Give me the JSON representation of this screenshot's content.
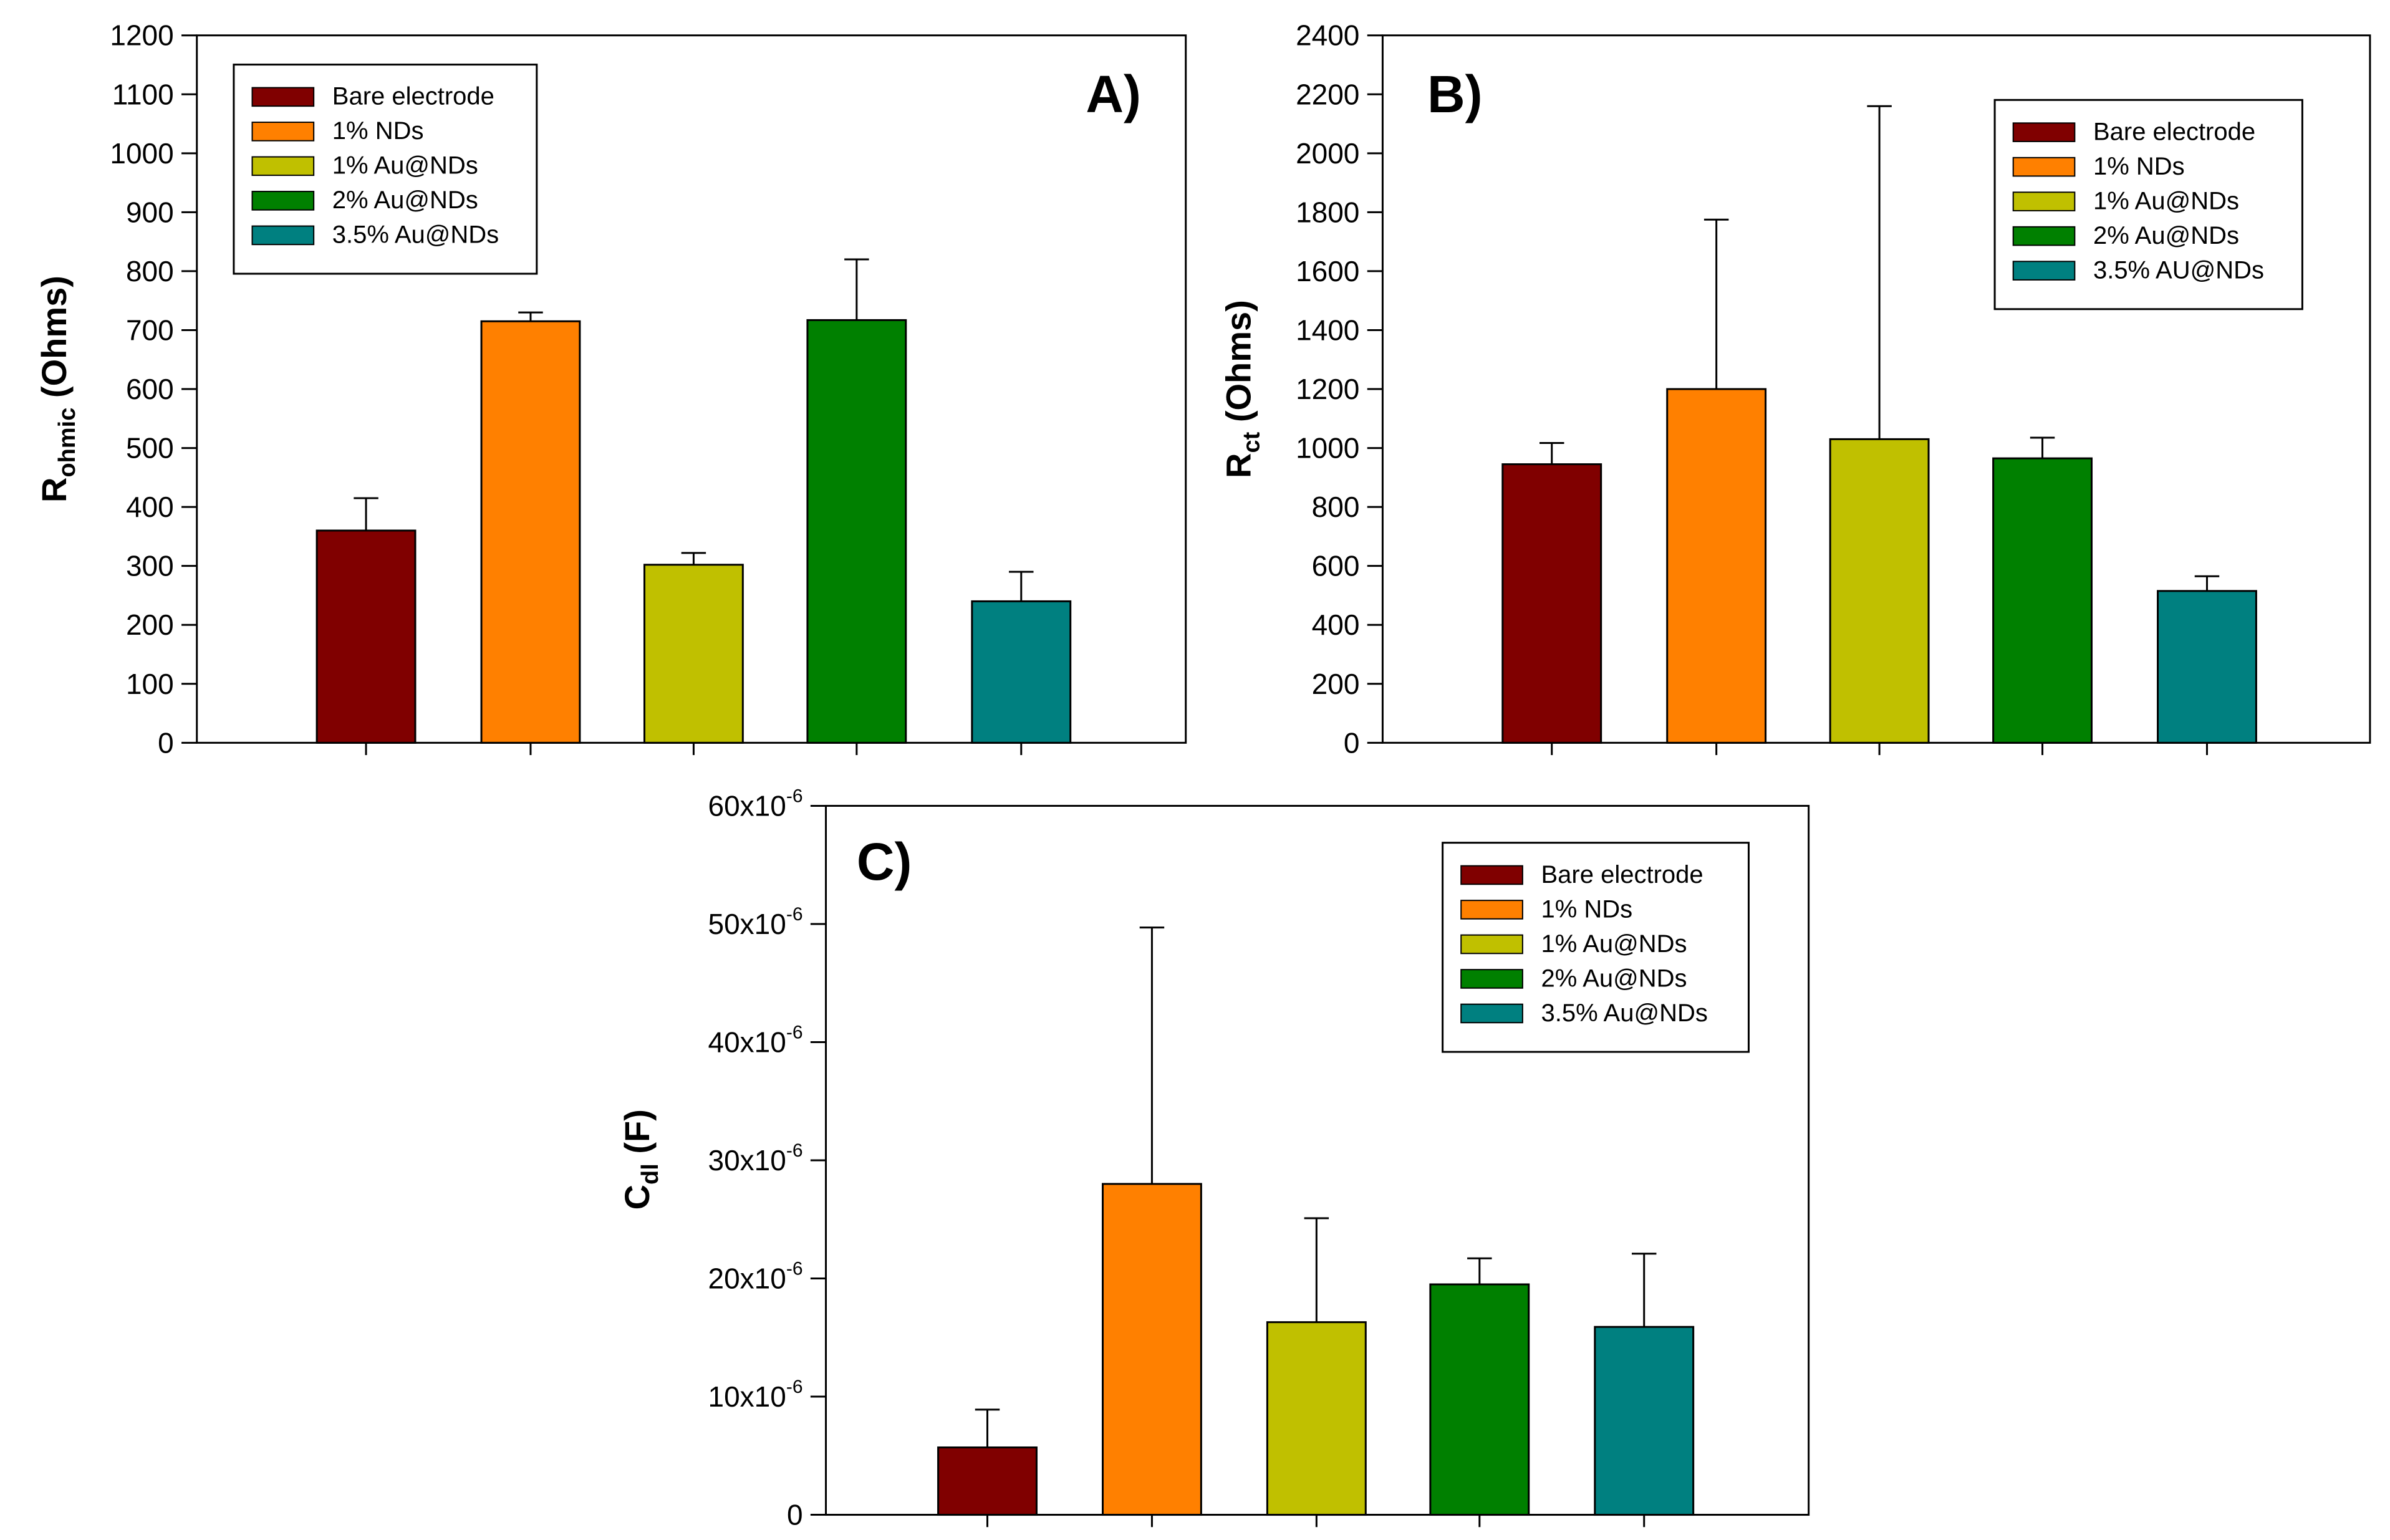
{
  "colors": {
    "bare": "#800000",
    "nds": "#FF8000",
    "au1": "#C0C000",
    "au2": "#008000",
    "au35": "#008080"
  },
  "chart_data": [
    {
      "type": "bar",
      "panel_label": "A)",
      "ylabel_main": "R",
      "ylabel_sub": "ohmic",
      "ylabel_unit": " (Ohms)",
      "ylim": [
        0,
        1200
      ],
      "yticks": [
        0,
        100,
        200,
        300,
        400,
        500,
        600,
        700,
        800,
        900,
        1000,
        1100,
        1200
      ],
      "legend_position": "top-left",
      "series": [
        {
          "name": "Bare electrode",
          "color_key": "bare",
          "value": 360,
          "error": 55
        },
        {
          "name": "1% NDs",
          "color_key": "nds",
          "value": 715,
          "error": 15
        },
        {
          "name": "1% Au@NDs",
          "color_key": "au1",
          "value": 302,
          "error": 20
        },
        {
          "name": "2% Au@NDs",
          "color_key": "au2",
          "value": 717,
          "error": 103
        },
        {
          "name": "3.5% Au@NDs",
          "color_key": "au35",
          "value": 240,
          "error": 50
        }
      ]
    },
    {
      "type": "bar",
      "panel_label": "B)",
      "ylabel_main": "R",
      "ylabel_sub": "ct",
      "ylabel_unit": " (Ohms)",
      "ylim": [
        0,
        2400
      ],
      "yticks": [
        0,
        200,
        400,
        600,
        800,
        1000,
        1200,
        1400,
        1600,
        1800,
        2000,
        2200,
        2400
      ],
      "legend_position": "top-right",
      "series": [
        {
          "name": "Bare electrode",
          "color_key": "bare",
          "value": 945,
          "error": 72
        },
        {
          "name": "1% NDs",
          "color_key": "nds",
          "value": 1200,
          "error": 575
        },
        {
          "name": "1% Au@NDs",
          "color_key": "au1",
          "value": 1030,
          "error": 1130
        },
        {
          "name": "2% Au@NDs",
          "color_key": "au2",
          "value": 965,
          "error": 70
        },
        {
          "name": "3.5% AU@NDs",
          "color_key": "au35",
          "value": 515,
          "error": 50
        }
      ]
    },
    {
      "type": "bar",
      "panel_label": "C)",
      "ylabel_main": "C",
      "ylabel_sub": "dl",
      "ylabel_unit": " (F)",
      "ylim": [
        0,
        60
      ],
      "yticks": [
        0,
        10,
        20,
        30,
        40,
        50,
        60
      ],
      "ytick_labels": [
        "0",
        "10x10",
        "20x10",
        "30x10",
        "40x10",
        "50x10",
        "60x10"
      ],
      "ytick_exponent": "-6",
      "value_unit": "x10^-6 F",
      "legend_position": "top-right",
      "series": [
        {
          "name": "Bare electrode",
          "color_key": "bare",
          "value": 5.7,
          "error": 3.2
        },
        {
          "name": "1% NDs",
          "color_key": "nds",
          "value": 28,
          "error": 21.7
        },
        {
          "name": "1% Au@NDs",
          "color_key": "au1",
          "value": 16.3,
          "error": 8.8
        },
        {
          "name": "2% Au@NDs",
          "color_key": "au2",
          "value": 19.5,
          "error": 2.2
        },
        {
          "name": "3.5% Au@NDs",
          "color_key": "au35",
          "value": 15.9,
          "error": 6.2
        }
      ]
    }
  ]
}
